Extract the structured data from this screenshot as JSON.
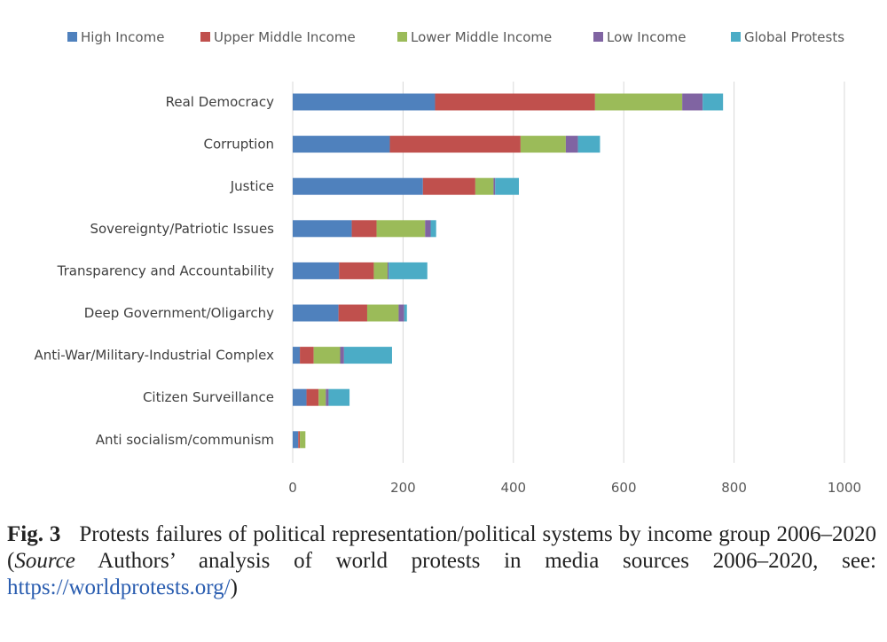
{
  "chart_data": {
    "type": "bar",
    "orientation": "horizontal",
    "stacked": true,
    "categories": [
      "Real Democracy",
      "Corruption",
      "Justice",
      "Sovereignty/Patriotic Issues",
      "Transparency and Accountability",
      "Deep Government/Oligarchy",
      "Anti-War/Military-Industrial Complex",
      "Citizen Surveillance",
      "Anti socialism/communism"
    ],
    "series": [
      {
        "name": "High Income",
        "color": "#4f81bd",
        "values": [
          258,
          176,
          236,
          107,
          84,
          83,
          13,
          25,
          10
        ]
      },
      {
        "name": "Upper Middle Income",
        "color": "#c0504d",
        "values": [
          290,
          237,
          95,
          45,
          63,
          52,
          25,
          22,
          3
        ]
      },
      {
        "name": "Lower Middle Income",
        "color": "#9bbb59",
        "values": [
          158,
          82,
          33,
          88,
          25,
          57,
          48,
          13,
          10
        ]
      },
      {
        "name": "Low Income",
        "color": "#8064a2",
        "values": [
          37,
          22,
          3,
          10,
          2,
          10,
          7,
          5,
          0
        ]
      },
      {
        "name": "Global Protests",
        "color": "#4bacc6",
        "values": [
          37,
          40,
          43,
          10,
          70,
          5,
          87,
          38,
          0
        ]
      }
    ],
    "xlim": [
      0,
      1000
    ],
    "xticks": [
      0,
      200,
      400,
      600,
      800,
      1000
    ],
    "grid": "vertical",
    "legend": "top"
  },
  "caption": {
    "label": "Fig. 3",
    "text_before": "Protests failures of political representation/political systems by income group 2006–2020 (",
    "source_word": "Source",
    "text_after": " Authors’ analysis of world protests in media sources 2006–2020, see: ",
    "link": "https://worldprotests.org/",
    "closing": ")"
  }
}
